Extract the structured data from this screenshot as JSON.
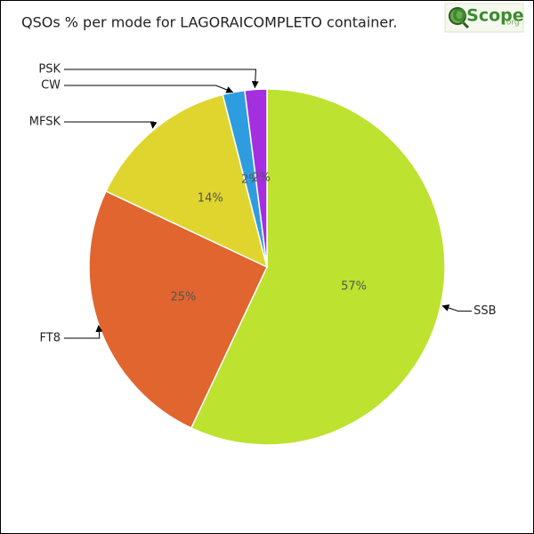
{
  "chart_data": {
    "type": "pie",
    "title": "QSOs % per mode for LAGORAICOMPLETO container.",
    "logo": {
      "main": "QScope",
      "suffix": ".org"
    },
    "categories": [
      "SSB",
      "FT8",
      "MFSK",
      "CW",
      "PSK"
    ],
    "values": [
      57,
      25,
      14,
      2,
      2
    ],
    "value_labels": [
      "57%",
      "25%",
      "14%",
      "2%",
      "2%"
    ],
    "colors": [
      "#bde22f",
      "#e0652e",
      "#e0d52e",
      "#2e9de0",
      "#a52ee0"
    ]
  }
}
